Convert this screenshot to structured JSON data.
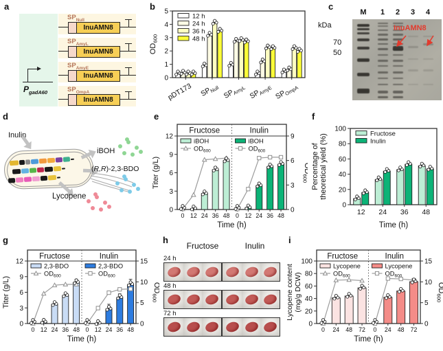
{
  "panel_a": {
    "label": "a",
    "promoter": {
      "base": "P",
      "sub": "gadA60"
    },
    "cassettes": [
      {
        "sp_base": "SP",
        "sp_sub": "Null",
        "gene": "InuAMN8"
      },
      {
        "sp_base": "SP",
        "sp_sub": "AmyL",
        "gene": "InuAMN8"
      },
      {
        "sp_base": "SP",
        "sp_sub": "AmyE",
        "gene": "InuAMN8"
      },
      {
        "sp_base": "SP",
        "sp_sub": "OmpA",
        "gene": "InuAMN8"
      }
    ]
  },
  "panel_b": {
    "label": "b"
  },
  "panel_c": {
    "label": "c",
    "kda": "kDa",
    "lanes": [
      "M",
      "1",
      "2",
      "3",
      "4"
    ],
    "markers": [
      "70",
      "50"
    ],
    "annotation": "InuAMN8",
    "annotation_color": "#e23b2e"
  },
  "panel_d": {
    "label": "d",
    "inulin": "Inulin",
    "iboh": "iBOH",
    "bdo": {
      "pre": "(",
      "it": "R,R",
      "post": ")-2,3-BDO"
    },
    "lycopene": "Lycopene",
    "dot_colors": {
      "iboh": "#8fd694",
      "bdo": "#7ecbe8",
      "lycopene": "#ef8a97"
    }
  },
  "panel_e": {
    "label": "e"
  },
  "panel_f": {
    "label": "f"
  },
  "panel_g": {
    "label": "g"
  },
  "panel_h": {
    "label": "h",
    "col_headers": [
      "Fructose",
      "Inulin"
    ],
    "rows": [
      {
        "time": "24 h",
        "pellet_color": "#d27873"
      },
      {
        "time": "48 h",
        "pellet_color": "#c25b57"
      },
      {
        "time": "72 h",
        "pellet_color": "#b84e4d"
      }
    ]
  },
  "panel_i": {
    "label": "i"
  },
  "chart_data": [
    {
      "id": "b",
      "type": "bar",
      "ylabel": {
        "base": "OD",
        "sub": "600"
      },
      "ylim": [
        0,
        5
      ],
      "yticks": [
        0,
        1,
        2,
        3,
        4,
        5
      ],
      "categories": [
        {
          "base": "pDT173"
        },
        {
          "base": "SP",
          "sub": "Null"
        },
        {
          "base": "SP",
          "sub": "AmyL"
        },
        {
          "base": "SP",
          "sub": "AmyE"
        },
        {
          "base": "SP",
          "sub": "OmpA"
        }
      ],
      "series": [
        {
          "name": "12 h",
          "color": "#ffffff",
          "values": [
            0.3,
            0.9,
            0.95,
            0.3,
            0.45
          ]
        },
        {
          "name": "24 h",
          "color": "#fdfbe4",
          "values": [
            0.35,
            3.2,
            2.75,
            1.2,
            0.6
          ]
        },
        {
          "name": "36 h",
          "color": "#feffc2",
          "values": [
            0.3,
            4.1,
            2.8,
            2.25,
            2.2
          ]
        },
        {
          "name": "48 h",
          "color": "#fdff38",
          "values": [
            0.3,
            3.5,
            2.7,
            2.2,
            2.0
          ]
        }
      ],
      "legend_position": "top-left",
      "grid": false
    },
    {
      "id": "e",
      "type": "bar+line-dual-axis",
      "xlabel": "Time (h)",
      "x": [
        "0",
        "12",
        "24",
        "36",
        "48"
      ],
      "ylabel_left": "Titer (g/L)",
      "ylim_left": [
        0,
        12
      ],
      "yticks_left": [
        0,
        3,
        6,
        9,
        12
      ],
      "ylabel_right": {
        "base": "OD",
        "sub": "600"
      },
      "ylim_right": [
        0,
        9
      ],
      "yticks_right": [
        0,
        3,
        6,
        9
      ],
      "subpanels": [
        {
          "title": "Fructose",
          "bar_label": "iBOH",
          "bar_color": "#bdeed5",
          "marker": "triangle",
          "bars": [
            0,
            0.15,
            2.6,
            6.5,
            8.0
          ],
          "bar_err": [
            0,
            0.05,
            0.2,
            0.5,
            0.5
          ],
          "line_label": {
            "base": "OD",
            "sub": "600"
          },
          "od": [
            0.05,
            1.8,
            6.1,
            6.2,
            6.3
          ]
        },
        {
          "title": "Inulin",
          "bar_label": "iBOH",
          "bar_color": "#0cb377",
          "marker": "square",
          "bars": [
            0,
            0.3,
            3.9,
            7.0,
            7.4
          ],
          "bar_err": [
            0,
            0.05,
            0.2,
            0.3,
            0.3
          ],
          "line_label": {
            "base": "OD",
            "sub": "600"
          },
          "od": [
            0.05,
            2.5,
            6.3,
            6.4,
            6.4
          ]
        }
      ]
    },
    {
      "id": "f",
      "type": "bar",
      "xlabel": "Time (h)",
      "ylabel": [
        "Percentage of",
        "theoretical yield (%)"
      ],
      "ylim": [
        0,
        100
      ],
      "yticks": [
        0,
        20,
        40,
        60,
        80,
        100
      ],
      "categories": [
        {
          "base": "12"
        },
        {
          "base": "24"
        },
        {
          "base": "36"
        },
        {
          "base": "48"
        }
      ],
      "series": [
        {
          "name": "Fructose",
          "color": "#bdeed5",
          "values": [
            8,
            33,
            46,
            51
          ]
        },
        {
          "name": "Inulin",
          "color": "#0cb377",
          "values": [
            16,
            44,
            53,
            47
          ]
        }
      ],
      "legend_position": "top-left",
      "grid": false
    },
    {
      "id": "g",
      "type": "bar+line-dual-axis",
      "xlabel": "Time (h)",
      "x": [
        "0",
        "12",
        "24",
        "36",
        "48"
      ],
      "ylabel_left": "Titer (g/L)",
      "ylim_left": [
        0,
        12
      ],
      "yticks_left": [
        0,
        3,
        6,
        9,
        12
      ],
      "ylabel_right": {
        "base": "OD",
        "sub": "600"
      },
      "ylim_right": [
        0,
        15
      ],
      "yticks_right": [
        0,
        5,
        10,
        15
      ],
      "subpanels": [
        {
          "title": "Fructose",
          "bar_label": "2,3-BDO",
          "bar_color": "#c9dcf5",
          "marker": "triangle",
          "bars": [
            0,
            0.3,
            3.7,
            5.4,
            7.9
          ],
          "bar_err": [
            0,
            0.1,
            0.4,
            0.4,
            0.6
          ],
          "line_label": {
            "base": "OD",
            "sub": "600"
          },
          "od": [
            0,
            7.2,
            9.2,
            9.4,
            9.4
          ]
        },
        {
          "title": "Inulin",
          "bar_label": "2,3-BDO",
          "bar_color": "#2d7ce0",
          "marker": "square",
          "bars": [
            0,
            0.05,
            2.8,
            5.0,
            7.5
          ],
          "bar_err": [
            0,
            0.05,
            0.9,
            0.7,
            1.0
          ],
          "line_label": {
            "base": "OD",
            "sub": "600"
          },
          "od": [
            0,
            3.7,
            7.4,
            8.2,
            8.3
          ]
        }
      ]
    },
    {
      "id": "i",
      "type": "bar+line-dual-axis",
      "xlabel": "Time (h)",
      "x": [
        "0",
        "24",
        "48",
        "72"
      ],
      "ylabel_left": [
        "Lycopene content",
        "(mg/g DCW)"
      ],
      "ylim_left": [
        0,
        100
      ],
      "yticks_left": [
        0,
        20,
        40,
        60,
        80,
        100
      ],
      "ylabel_right": {
        "base": "OD",
        "sub": "600"
      },
      "ylim_right": [
        0,
        15
      ],
      "yticks_right": [
        0,
        5,
        10,
        15
      ],
      "subpanels": [
        {
          "title": "Fructose",
          "bar_label": "Lycopene",
          "bar_color": "#fbe3e2",
          "marker": "triangle",
          "bars": [
            0,
            41,
            44,
            57
          ],
          "bar_err": [
            0,
            3,
            3,
            3
          ],
          "line_label": {
            "base": "OD",
            "sub": "600"
          },
          "od": [
            0,
            10.4,
            10.5,
            10.3
          ]
        },
        {
          "title": "Inulin",
          "bar_label": "Lycopene",
          "bar_color": "#f48c88",
          "marker": "square",
          "bars": [
            0,
            42,
            52,
            67
          ],
          "bar_err": [
            0,
            2,
            2,
            3
          ],
          "line_label": {
            "base": "OD",
            "sub": "600"
          },
          "od": [
            0,
            10.8,
            10.7,
            10.4
          ]
        }
      ]
    }
  ]
}
